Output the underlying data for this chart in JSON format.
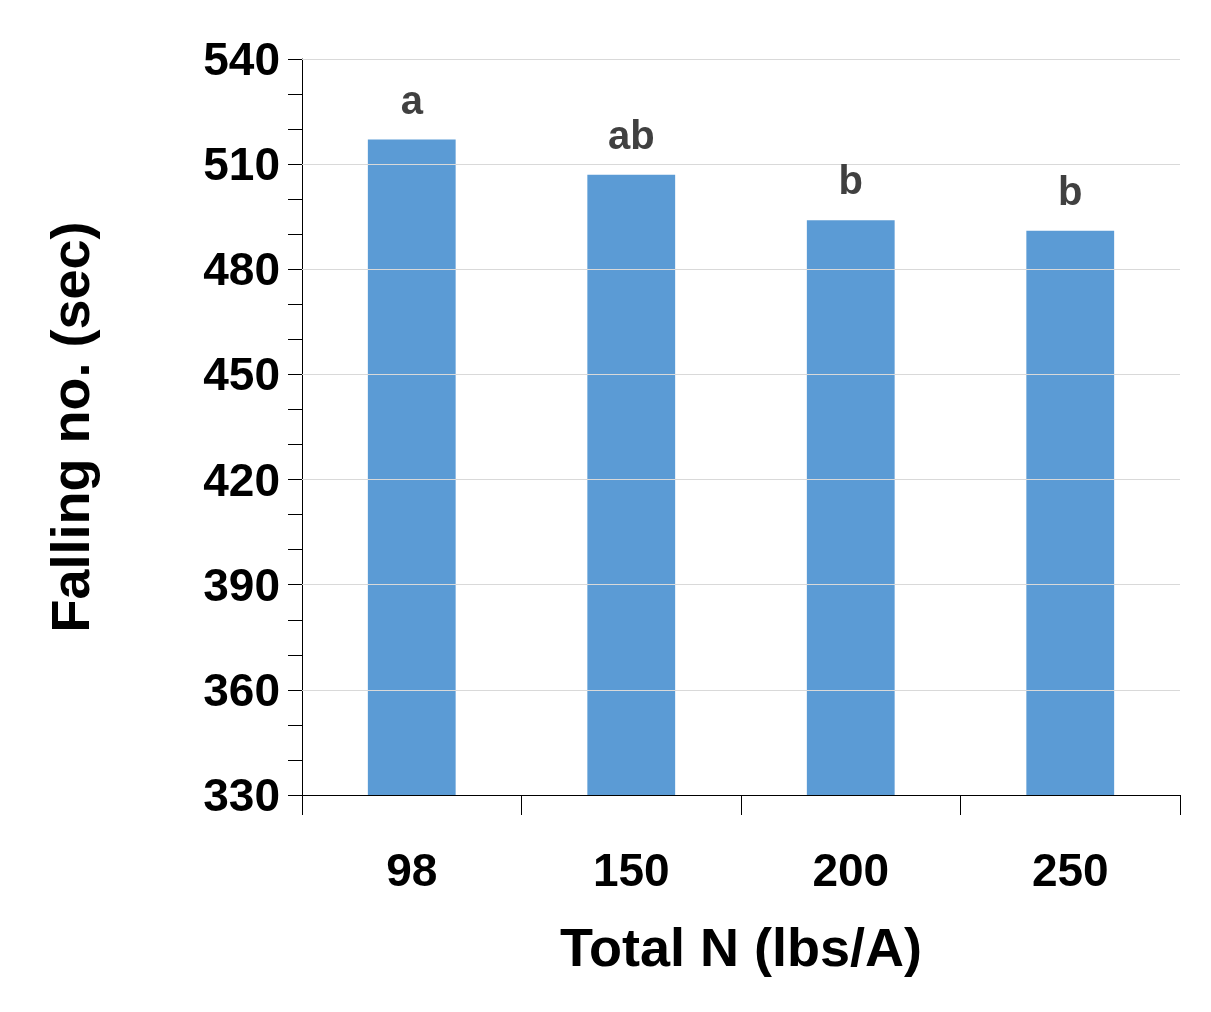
{
  "chart_data": {
    "type": "bar",
    "xlabel": "Total N (lbs/A)",
    "ylabel": "Falling no. (sec)",
    "categories": [
      "98",
      "150",
      "200",
      "250"
    ],
    "values": [
      517,
      507,
      494,
      491
    ],
    "color": "#5b9bd5",
    "ylim": [
      330,
      540
    ],
    "yticks": [
      330,
      {
        "value": 340,
        "label": null
      },
      {
        "value": 350,
        "label": null
      },
      360,
      {
        "value": 370,
        "label": null
      },
      {
        "value": 380,
        "label": null
      },
      390,
      {
        "value": 400,
        "label": null
      },
      {
        "value": 410,
        "label": null
      },
      420,
      {
        "value": 430,
        "label": null
      },
      {
        "value": 440,
        "label": null
      },
      450,
      {
        "value": 460,
        "label": null
      },
      {
        "value": 470,
        "label": null
      },
      480,
      {
        "value": 490,
        "label": null
      },
      {
        "value": 500,
        "label": null
      },
      510,
      {
        "value": 520,
        "label": null
      },
      {
        "value": 530,
        "label": null
      },
      540
    ],
    "grid": "y",
    "annotations": [
      {
        "text": "a",
        "x": "98",
        "y": 517
      },
      {
        "text": "ab",
        "x": "150",
        "y": 507
      },
      {
        "text": "b",
        "x": "200",
        "y": 494
      },
      {
        "text": "b",
        "x": "250",
        "y": 491
      }
    ]
  }
}
